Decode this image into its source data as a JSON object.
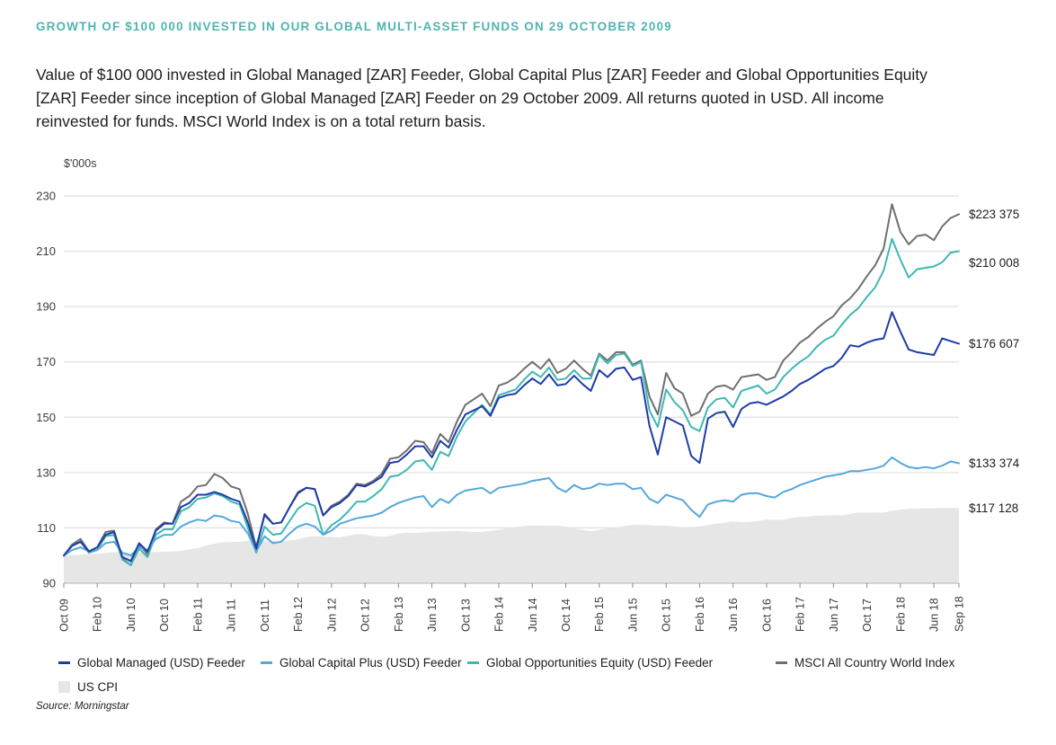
{
  "header": {
    "title": "GROWTH OF $100 000 INVESTED IN OUR GLOBAL MULTI-ASSET FUNDS ON 29 OCTOBER 2009",
    "description": "Value of $100 000 invested in Global Managed [ZAR] Feeder, Global Capital Plus [ZAR] Feeder and Global Opportunities Equity [ZAR] Feeder since inception of Global Managed [ZAR] Feeder on 29 October 2009. All returns quoted in USD. All income reinvested for funds. MSCI World Index is on a total return basis."
  },
  "colors": {
    "title_teal": "#4fb5b0",
    "text": "#1d1d1b",
    "grid": "#d9d9d9",
    "axis_line": "#b0b0b0",
    "tick": "#8c8c8c",
    "tick_label": "#3c3c3b"
  },
  "chart_data": {
    "type": "line",
    "unit_label": "$'000s",
    "grid": true,
    "legend_position": "bottom",
    "y_axis": {
      "min": 90,
      "max": 230,
      "ticks": [
        230,
        210,
        190,
        170,
        150,
        130,
        110,
        90
      ]
    },
    "x_axis": {
      "n_points": 108,
      "start": "Oct 2009",
      "end": "Sep 2018",
      "tick_months": [
        0,
        4,
        8,
        12,
        16,
        20,
        24,
        28,
        32,
        36,
        40,
        44,
        48,
        52,
        56,
        60,
        64,
        68,
        72,
        76,
        80,
        84,
        88,
        92,
        96,
        100,
        104,
        107
      ],
      "tick_labels": [
        "Oct 09",
        "Feb 10",
        "Jun 10",
        "Oct 10",
        "Feb 11",
        "Jun 11",
        "Oct 11",
        "Feb 12",
        "Jun 12",
        "Oct 12",
        "Feb 13",
        "Jun 13",
        "Oct 13",
        "Feb 14",
        "Jun 14",
        "Oct 14",
        "Feb 15",
        "Jun 15",
        "Oct 15",
        "Feb 16",
        "Jun 16",
        "Oct 16",
        "Feb 17",
        "Jun 17",
        "Oct 17",
        "Feb 18",
        "Jun 18",
        "Sep 18"
      ]
    },
    "area_series": {
      "name": "US CPI",
      "color": "#e6e6e6",
      "end_label": "$117 128",
      "end_value": 117.128,
      "values": [
        100,
        100.2,
        100.3,
        100.6,
        100.6,
        101,
        101.2,
        101.2,
        101.1,
        101.1,
        101.2,
        101.3,
        101.4,
        101.5,
        101.7,
        102.2,
        102.7,
        103.6,
        104.3,
        104.8,
        104.9,
        105,
        105.3,
        105.4,
        105.3,
        105.2,
        105,
        105.5,
        105.9,
        106.7,
        107,
        106.9,
        106.7,
        106.6,
        107.2,
        107.7,
        107.6,
        107.1,
        106.8,
        107.1,
        108,
        108.3,
        108.2,
        108.4,
        108.6,
        108.7,
        108.8,
        108.9,
        108.7,
        108.5,
        108.5,
        108.9,
        109.3,
        110,
        110.3,
        110.7,
        110.9,
        110.9,
        110.7,
        110.8,
        110.5,
        109.9,
        109.3,
        108.8,
        109.3,
        109.9,
        110.1,
        110.7,
        111.1,
        111.1,
        111,
        110.8,
        110.8,
        110.6,
        110.2,
        110.4,
        110.5,
        111,
        111.5,
        111.9,
        112.3,
        112.1,
        112.2,
        112.5,
        113,
        112.9,
        112.9,
        113.6,
        114,
        114.1,
        114.4,
        114.5,
        114.6,
        114.5,
        115,
        115.6,
        115.5,
        115.6,
        115.5,
        116.2,
        116.6,
        116.9,
        117,
        117.1,
        117.1,
        117.2,
        117.2,
        117.128
      ]
    },
    "series": [
      {
        "name": "MSCI All Country World Index",
        "color": "#6f6f6f",
        "end_label": "$223 375",
        "end_value": 223.375,
        "values": [
          100,
          104,
          106,
          101.5,
          103,
          108.5,
          109,
          99,
          96.5,
          104,
          100.5,
          109.5,
          112,
          111.5,
          119.5,
          121.5,
          125,
          125.5,
          129.5,
          128,
          125,
          124,
          115,
          103,
          114.5,
          111.5,
          112,
          117.5,
          123,
          124.5,
          124,
          114.5,
          118,
          119.5,
          122,
          126,
          125.5,
          127,
          129.5,
          135,
          135.5,
          138,
          141.5,
          141,
          137,
          144,
          141,
          148.5,
          154.5,
          156.5,
          158.5,
          154,
          161.5,
          162.5,
          164.5,
          167.5,
          170,
          167.5,
          171,
          166,
          167.5,
          170.5,
          167.5,
          165,
          173,
          170.5,
          173.5,
          173.5,
          169,
          170.5,
          157.5,
          151,
          166,
          160.5,
          158.5,
          150.5,
          152,
          158.5,
          161,
          161.5,
          160,
          164.5,
          165,
          165.5,
          163.5,
          164.5,
          170.5,
          173.5,
          177,
          179,
          182,
          184.5,
          186.5,
          190.5,
          193,
          196.5,
          201,
          205,
          211,
          227,
          217,
          212.5,
          215.5,
          216,
          214,
          219,
          222,
          223.375
        ]
      },
      {
        "name": "Global Opportunities Equity (USD) Feeder",
        "color": "#3fb8b2",
        "end_label": "$210 008",
        "end_value": 210.008,
        "values": [
          100,
          103.5,
          105,
          101,
          102,
          107,
          107.5,
          98.5,
          96.5,
          102.5,
          99.5,
          107.5,
          109.5,
          109.5,
          116,
          117.5,
          120.5,
          121,
          122.5,
          121.5,
          119.5,
          118.5,
          110,
          101,
          110.5,
          107.5,
          108,
          112.5,
          117,
          119,
          118,
          107.5,
          111,
          113,
          116,
          119.5,
          119.5,
          121.5,
          124,
          128.5,
          129,
          131,
          134,
          134.5,
          131,
          137.5,
          136,
          143,
          148.5,
          151.5,
          154.5,
          151,
          158,
          159,
          160,
          163.5,
          166.5,
          164.5,
          168,
          163.5,
          164,
          167,
          164,
          164,
          172.5,
          169.5,
          172.5,
          173,
          168.5,
          170,
          152.5,
          146.5,
          160,
          155.5,
          152.5,
          146.5,
          145,
          153.5,
          156.5,
          157,
          153.5,
          159.5,
          160.5,
          161.5,
          158.5,
          160,
          164.5,
          167.5,
          170,
          172,
          175.5,
          178,
          179.5,
          183.5,
          187,
          189.5,
          193.5,
          197,
          203,
          214.5,
          207,
          200.5,
          203.5,
          204,
          204.5,
          206,
          209.5,
          210.008
        ]
      },
      {
        "name": "Global Capital Plus (USD) Feeder",
        "color": "#55a7dc",
        "end_label": "$133 374",
        "end_value": 133.374,
        "values": [
          100,
          102,
          103,
          101.5,
          102,
          104.5,
          105,
          101,
          100,
          103,
          102,
          106,
          107.5,
          107.5,
          110.5,
          112,
          113,
          112.5,
          114.5,
          114,
          112.5,
          112,
          108,
          101.5,
          107,
          104.5,
          105,
          108,
          110.5,
          111.5,
          110.5,
          107.5,
          109,
          111.5,
          112.5,
          113.5,
          114,
          114.5,
          115.5,
          117.5,
          119,
          120,
          121,
          121.5,
          117.5,
          120.5,
          119,
          122,
          123.5,
          124,
          124.5,
          122.5,
          124.5,
          125,
          125.5,
          126,
          127,
          127.5,
          128,
          124.5,
          123,
          125.5,
          124,
          124.5,
          126,
          125.5,
          126,
          126,
          124,
          124.5,
          120.5,
          119,
          122,
          121,
          120,
          116.5,
          114,
          118.5,
          119.5,
          120,
          119.5,
          122,
          122.5,
          122.5,
          121.5,
          121,
          123,
          124,
          125.5,
          126.5,
          127.5,
          128.5,
          129,
          129.5,
          130.5,
          130.5,
          131,
          131.5,
          132.5,
          135.5,
          133.5,
          132,
          131.5,
          132,
          131.5,
          132.5,
          134,
          133.374
        ]
      },
      {
        "name": "Global Managed (USD) Feeder",
        "color": "#1e3ca8",
        "end_label": "$176 607",
        "end_value": 176.607,
        "values": [
          100,
          103.5,
          105,
          101.5,
          103,
          107.5,
          108.5,
          99.5,
          98,
          104.5,
          101.5,
          109,
          111.5,
          111.5,
          117.5,
          119,
          122,
          122,
          123,
          122,
          120.5,
          119.5,
          112,
          102.5,
          115,
          111.5,
          112,
          117.5,
          122.5,
          124.5,
          124,
          114.5,
          117.5,
          119,
          121.5,
          125.5,
          125,
          126.5,
          128.5,
          133.5,
          134,
          136.5,
          139.5,
          139.5,
          135.5,
          141.5,
          139,
          145.5,
          151,
          152.5,
          154,
          150.5,
          157,
          158,
          158.5,
          161.5,
          164,
          162,
          165.5,
          161.5,
          162,
          165,
          162,
          159.5,
          167,
          164.5,
          167.5,
          168,
          163.5,
          164.5,
          147,
          136.5,
          150,
          148.5,
          147,
          136,
          133.5,
          149.5,
          151.5,
          152,
          146.5,
          153,
          155,
          155.5,
          154.5,
          156,
          157.5,
          159.5,
          162,
          163.5,
          165.5,
          167.5,
          168.5,
          171.5,
          176,
          175.5,
          177,
          178,
          178.5,
          188,
          181,
          174.5,
          173.5,
          173,
          172.5,
          178.5,
          177.5,
          176.607
        ]
      }
    ]
  },
  "legend": {
    "items": [
      {
        "label": "Global Managed (USD) Feeder",
        "color": "#1e3ca8",
        "swatch": "line"
      },
      {
        "label": "Global Capital Plus (USD) Feeder",
        "color": "#55a7dc",
        "swatch": "line"
      },
      {
        "label": "Global Opportunities  Equity (USD) Feeder",
        "color": "#3fb8b2",
        "swatch": "line"
      },
      {
        "label": "MSCI All Country World Index",
        "color": "#6f6f6f",
        "swatch": "line"
      },
      {
        "label": "US CPI",
        "color": "#e6e6e6",
        "swatch": "square"
      }
    ]
  },
  "source": "Source: Morningstar"
}
